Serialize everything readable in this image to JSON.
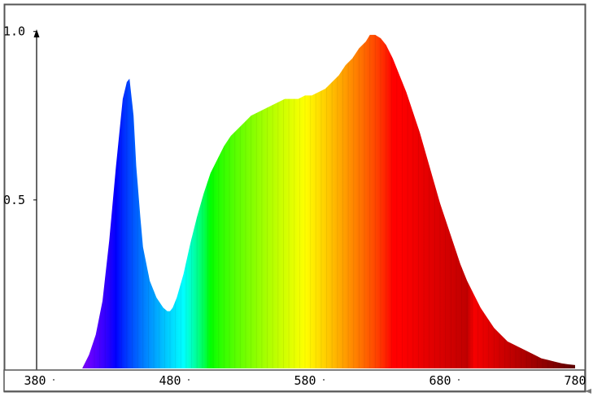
{
  "chart_data": {
    "type": "area",
    "title": "",
    "xlabel": "",
    "ylabel": "",
    "xlim": [
      380,
      780
    ],
    "ylim": [
      0,
      1.05
    ],
    "x_ticks": [
      {
        "value": 380,
        "label": "380"
      },
      {
        "value": 480,
        "label": "480"
      },
      {
        "value": 580,
        "label": "580"
      },
      {
        "value": 680,
        "label": "680"
      },
      {
        "value": 780,
        "label": "780"
      }
    ],
    "y_ticks": [
      {
        "value": 0.5,
        "label": "0.5"
      },
      {
        "value": 1.0,
        "label": "1.0"
      }
    ],
    "grid": false,
    "fill": "wavelength-spectrum-gradient",
    "series": [
      {
        "x": [
          415,
          420,
          425,
          430,
          435,
          440,
          445,
          448,
          450,
          453,
          455,
          458,
          460,
          465,
          470,
          475,
          478,
          480,
          482,
          485,
          490,
          495,
          500,
          505,
          510,
          515,
          520,
          525,
          530,
          535,
          540,
          545,
          550,
          555,
          560,
          565,
          570,
          575,
          580,
          585,
          590,
          595,
          600,
          605,
          610,
          615,
          620,
          625,
          628,
          632,
          636,
          640,
          645,
          650,
          655,
          660,
          665,
          670,
          675,
          680,
          685,
          690,
          695,
          700,
          705,
          710,
          715,
          720,
          725,
          730,
          735,
          740,
          745,
          750,
          755,
          760,
          765,
          770,
          775,
          780
        ],
        "y": [
          0.0,
          0.04,
          0.1,
          0.2,
          0.38,
          0.6,
          0.8,
          0.85,
          0.86,
          0.75,
          0.6,
          0.45,
          0.36,
          0.26,
          0.21,
          0.18,
          0.17,
          0.17,
          0.18,
          0.21,
          0.28,
          0.37,
          0.45,
          0.52,
          0.58,
          0.62,
          0.66,
          0.69,
          0.71,
          0.73,
          0.75,
          0.76,
          0.77,
          0.78,
          0.79,
          0.8,
          0.8,
          0.8,
          0.81,
          0.81,
          0.82,
          0.83,
          0.85,
          0.87,
          0.9,
          0.92,
          0.95,
          0.97,
          0.99,
          0.99,
          0.98,
          0.96,
          0.92,
          0.87,
          0.82,
          0.76,
          0.7,
          0.63,
          0.56,
          0.49,
          0.43,
          0.37,
          0.31,
          0.26,
          0.22,
          0.18,
          0.15,
          0.12,
          0.1,
          0.08,
          0.07,
          0.06,
          0.05,
          0.04,
          0.03,
          0.025,
          0.02,
          0.015,
          0.012,
          0.01
        ]
      }
    ]
  }
}
